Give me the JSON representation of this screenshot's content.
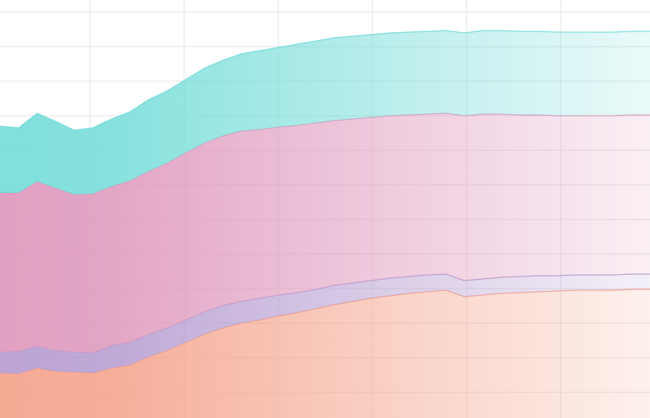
{
  "chart_data": {
    "type": "area",
    "stacked": true,
    "title": "",
    "xlabel": "",
    "ylabel": "",
    "grid": true,
    "legend": "none",
    "x": [
      0,
      1,
      2,
      3,
      4,
      5,
      6,
      7,
      8,
      9,
      10,
      11,
      12,
      13,
      14,
      15,
      16,
      17,
      18,
      19,
      20,
      21,
      22,
      23,
      24,
      25,
      26,
      27,
      28,
      29,
      30,
      31,
      32,
      33,
      34,
      35
    ],
    "xlim": [
      0,
      35
    ],
    "ylim": [
      0,
      520
    ],
    "series": [
      {
        "color": "#f4a088",
        "values": [
          56,
          55,
          62,
          58,
          57,
          56,
          62,
          66,
          76,
          84,
          94,
          104,
          112,
          118,
          122,
          127,
          131,
          136,
          141,
          145,
          149,
          152,
          155,
          157,
          159,
          151,
          153,
          155,
          156,
          157,
          158,
          159,
          159,
          159,
          160,
          160
        ]
      },
      {
        "color": "#b49ad0",
        "values": [
          26,
          28,
          27,
          26,
          25,
          25,
          28,
          28,
          28,
          28,
          28,
          28,
          28,
          27,
          27,
          26,
          25,
          24,
          24,
          23,
          22,
          22,
          21,
          21,
          20,
          20,
          20,
          20,
          20,
          20,
          19,
          19,
          19,
          19,
          19,
          19
        ]
      },
      {
        "color": "#de96bb",
        "values": [
          198,
          197,
          205,
          202,
          196,
          198,
          198,
          201,
          203,
          205,
          208,
          210,
          211,
          212,
          210,
          209,
          208,
          207,
          205,
          204,
          203,
          202,
          201,
          200,
          200,
          205,
          205,
          203,
          201,
          200,
          199,
          198,
          198,
          198,
          198,
          198
        ]
      },
      {
        "color": "#72dcd8",
        "values": [
          83,
          81,
          85,
          83,
          80,
          82,
          84,
          86,
          89,
          90,
          91,
          93,
          94,
          96,
          98,
          99,
          101,
          102,
          103,
          103,
          103,
          103,
          103,
          103,
          103,
          103,
          104,
          104,
          104,
          104,
          104,
          104,
          104,
          104,
          104,
          104
        ]
      }
    ],
    "fade": {
      "opaque_until_x": 6,
      "end_opacity": 0.15
    }
  }
}
